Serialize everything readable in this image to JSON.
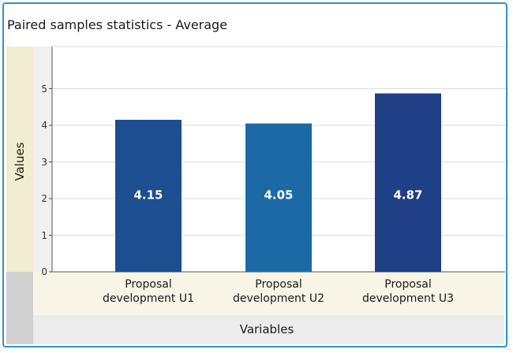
{
  "chart_data": {
    "type": "bar",
    "title": "Paired samples statistics - Average",
    "xlabel": "Variables",
    "ylabel": "Values",
    "categories": [
      [
        "Proposal",
        "development U1"
      ],
      [
        "Proposal",
        "development U2"
      ],
      [
        "Proposal",
        "development U3"
      ]
    ],
    "values": [
      4.15,
      4.05,
      4.87
    ],
    "data_labels": [
      "4.15",
      "4.05",
      "4.87"
    ],
    "ylim": [
      0,
      6
    ],
    "yticks": [
      0,
      1,
      2,
      3,
      4,
      5
    ],
    "grid": true,
    "colors": [
      "#1d4e8f",
      "#1b6aa5",
      "#1f3f86"
    ]
  }
}
